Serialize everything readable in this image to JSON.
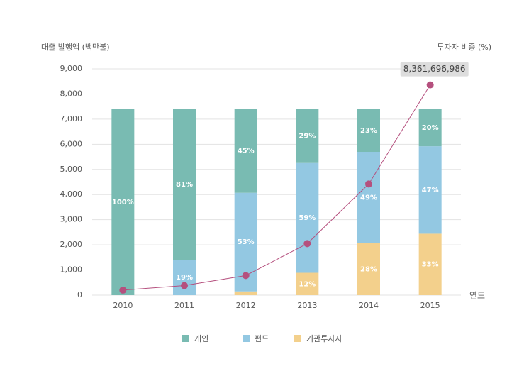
{
  "chart_data": {
    "type": "bar",
    "stacked": true,
    "y_label": "대출 발행액 (백만불)",
    "y2_label": "투자자 비중 (%)",
    "x_label": "연도",
    "categories": [
      "2010",
      "2011",
      "2012",
      "2013",
      "2014",
      "2015"
    ],
    "ylim": [
      0,
      9000
    ],
    "yticks": [
      0,
      {
        "value": 1000,
        "label": "1,000"
      },
      {
        "value": 2000,
        "label": "2,000"
      },
      {
        "value": 3000,
        "label": "3,000"
      },
      {
        "value": 4000,
        "label": "4,000"
      },
      {
        "value": 5000,
        "label": "5,000"
      },
      {
        "value": 6000,
        "label": "6,000"
      },
      {
        "value": 7000,
        "label": "7,000"
      },
      {
        "value": 8000,
        "label": "8,000"
      },
      {
        "value": 9000,
        "label": "9,000"
      }
    ],
    "y2lim": [
      0,
      121.6
    ],
    "grid": true,
    "series": [
      {
        "name": "개인",
        "color": "#79bbb2",
        "axis": "y2",
        "values": [
          100,
          81,
          45,
          29,
          23,
          20
        ],
        "value_labels": [
          "100%",
          "81%",
          "45%",
          "29%",
          "23%",
          "20%"
        ]
      },
      {
        "name": "펀드",
        "color": "#93c8e2",
        "axis": "y2",
        "values": [
          0,
          19,
          53,
          59,
          49,
          47
        ],
        "value_labels": [
          null,
          "19%",
          "53%",
          "59%",
          "49%",
          "47%"
        ]
      },
      {
        "name": "기관투자자",
        "color": "#f3d08c",
        "axis": "y2",
        "values": [
          0,
          0,
          2,
          12,
          28,
          33
        ],
        "value_labels": [
          null,
          null,
          null,
          "12%",
          "28%",
          "33%"
        ]
      },
      {
        "type": "line",
        "color": "#b5507e",
        "values": [
          200,
          380,
          780,
          2050,
          4420,
          8361.696986
        ],
        "value_labels": [
          null,
          null,
          null,
          null,
          null,
          "8,361,696,986"
        ]
      }
    ]
  }
}
